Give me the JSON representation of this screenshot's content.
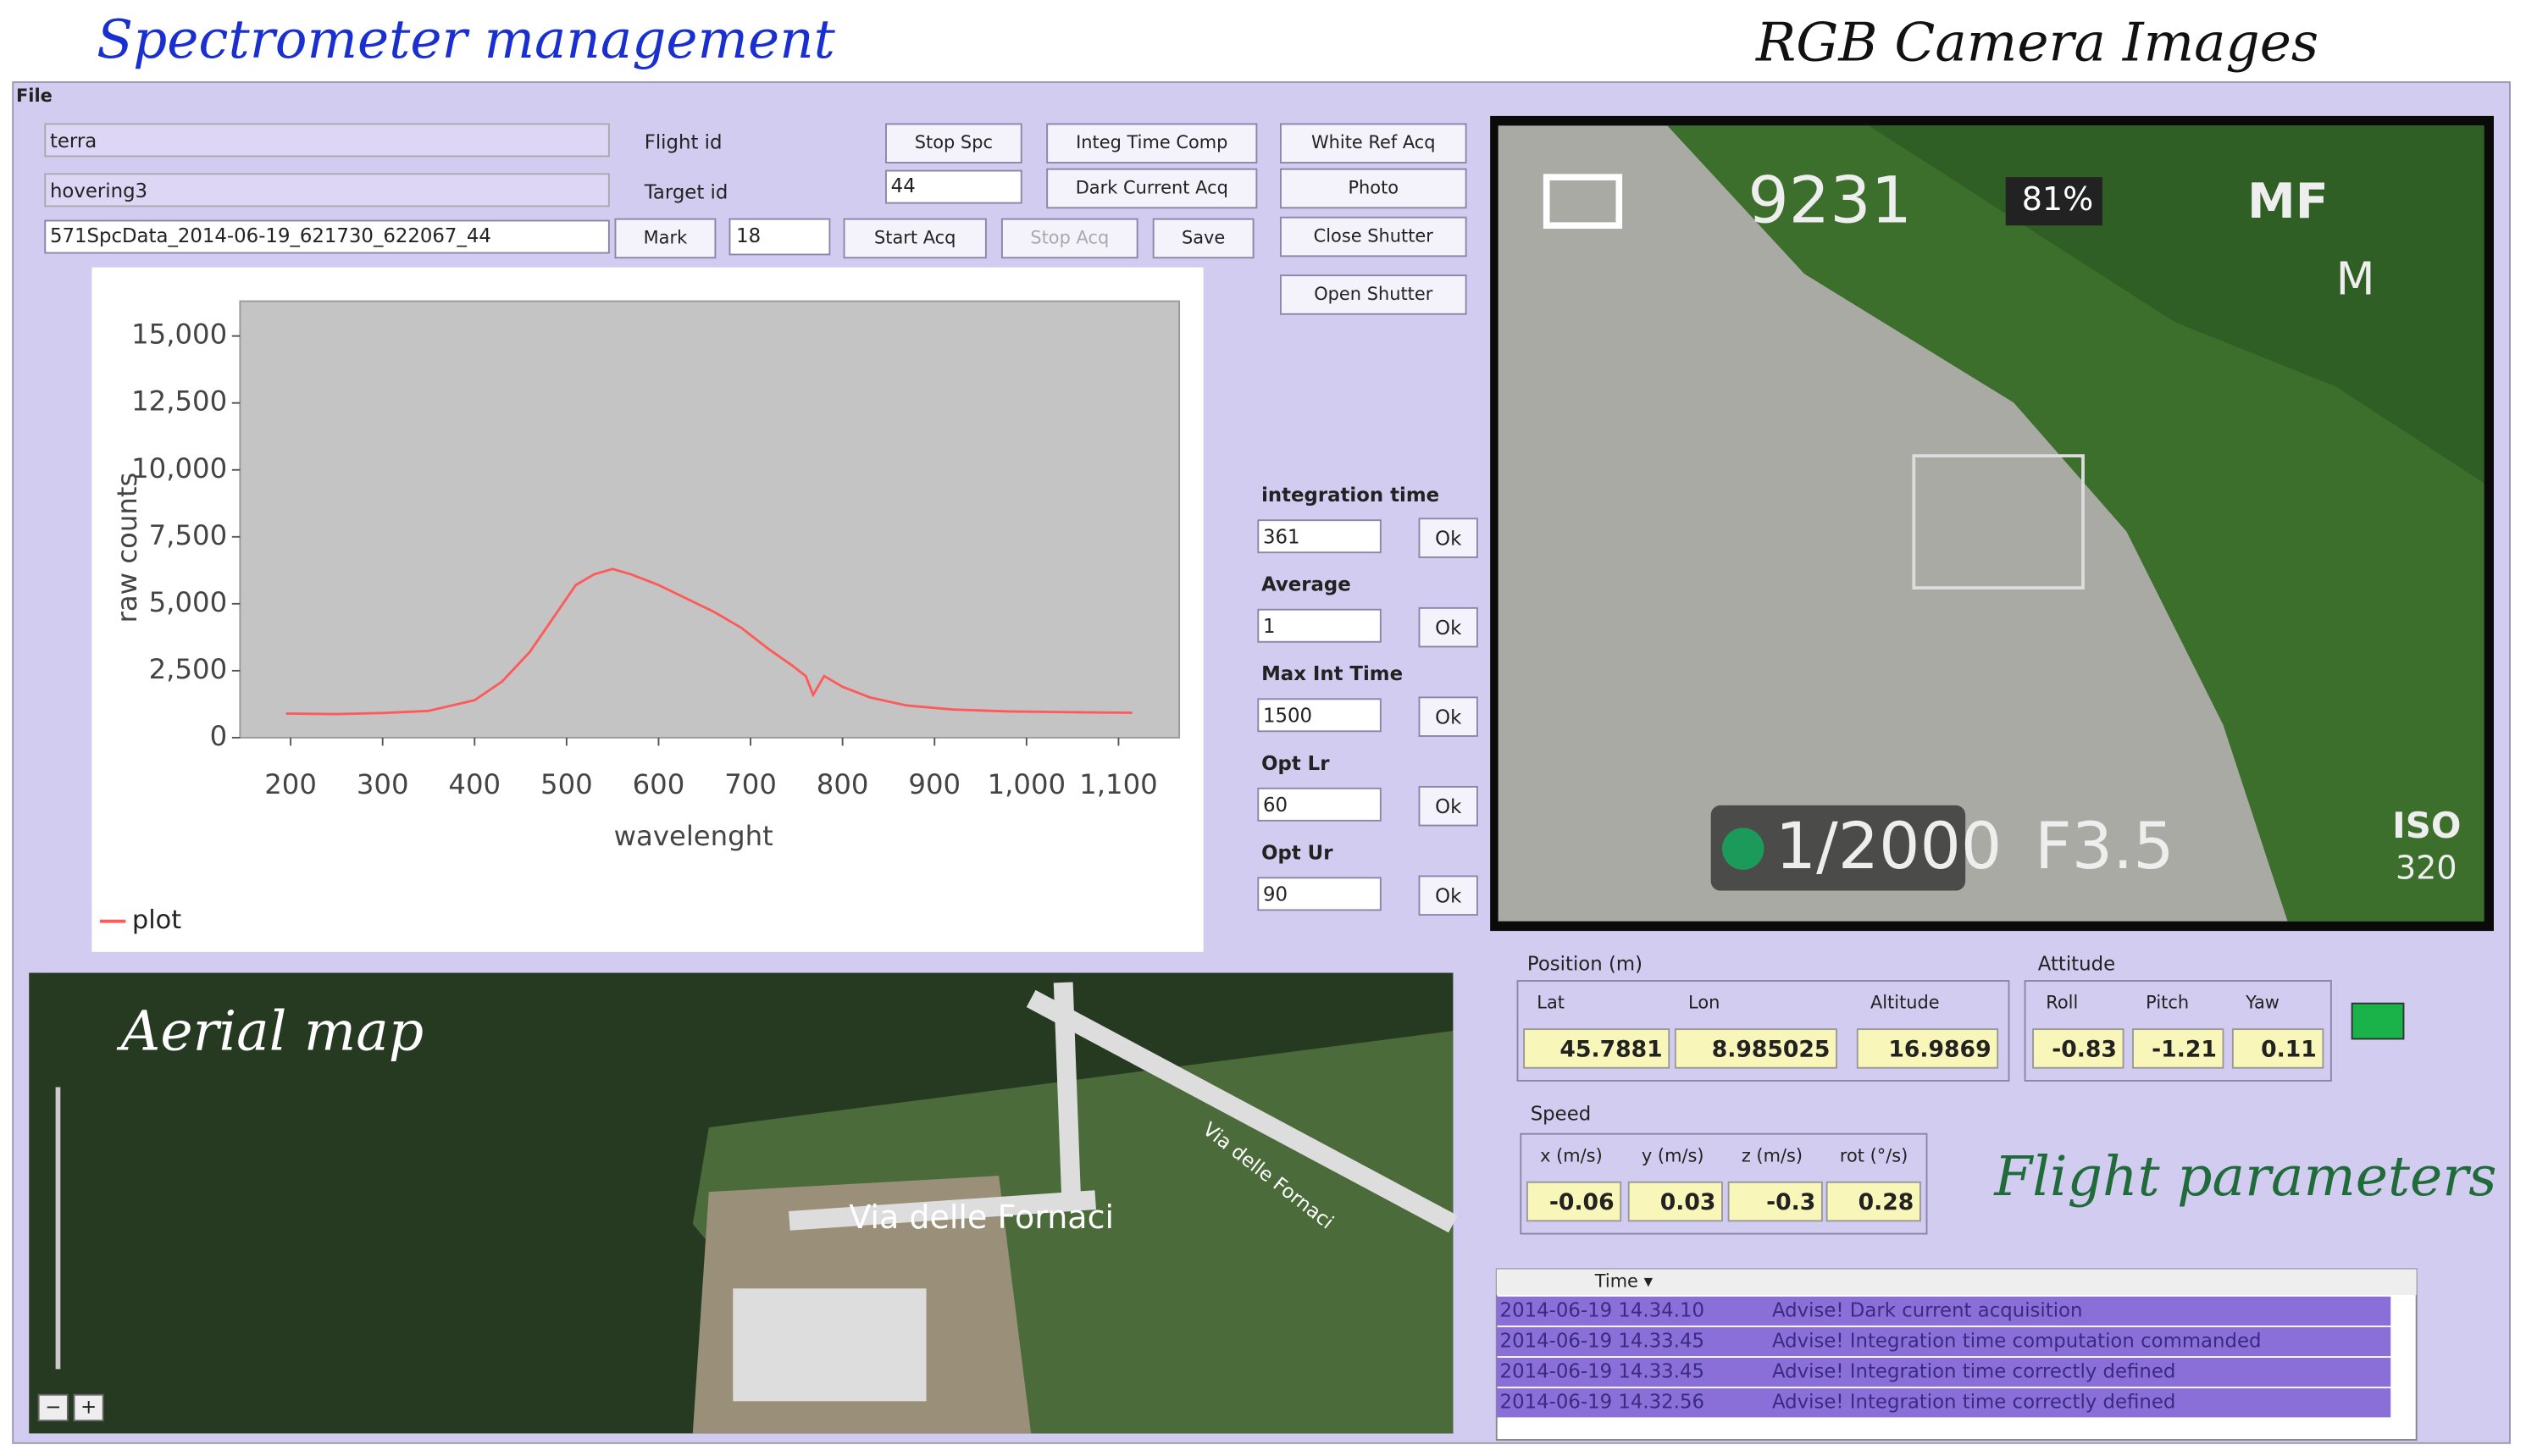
{
  "header": {
    "left_title": "Spectrometer management",
    "right_title": "RGB Camera Images"
  },
  "menu": {
    "file": "File"
  },
  "spectrometer": {
    "flight_field": "terra",
    "flight_label": "Flight id",
    "target_field": "hovering3",
    "target_label": "Target id",
    "file_field": "571SpcData_2014-06-19_621730_622067_44",
    "target_value": "44",
    "mark_value": "18",
    "buttons": {
      "stop_spc": "Stop Spc",
      "integ_time_comp": "Integ Time Comp",
      "white_ref_acq": "White Ref Acq",
      "dark_current_acq": "Dark Current Acq",
      "photo": "Photo",
      "mark": "Mark",
      "start_acq": "Start Acq",
      "stop_acq": "Stop Acq",
      "save": "Save",
      "close_shutter": "Close Shutter",
      "open_shutter": "Open Shutter"
    },
    "settings": [
      {
        "label": "integration time",
        "value": "361",
        "button": "Ok"
      },
      {
        "label": "Average",
        "value": "1",
        "button": "Ok"
      },
      {
        "label": "Max Int Time",
        "value": "1500",
        "button": "Ok"
      },
      {
        "label": "Opt Lr",
        "value": "60",
        "button": "Ok"
      },
      {
        "label": "Opt Ur",
        "value": "90",
        "button": "Ok"
      }
    ]
  },
  "chart_data": {
    "type": "line",
    "x_label": "wavelenght",
    "y_label": "raw counts",
    "x": [
      195,
      250,
      300,
      350,
      400,
      430,
      460,
      490,
      510,
      530,
      550,
      570,
      600,
      630,
      660,
      690,
      720,
      745,
      760,
      768,
      780,
      800,
      830,
      870,
      920,
      980,
      1050,
      1115
    ],
    "series": [
      {
        "name": "plot",
        "color": "#ff5a5a",
        "values": [
          900,
          880,
          920,
          1000,
          1400,
          2100,
          3200,
          4700,
          5700,
          6100,
          6300,
          6100,
          5700,
          5200,
          4700,
          4100,
          3300,
          2700,
          2300,
          1600,
          2300,
          1900,
          1500,
          1200,
          1050,
          980,
          950,
          930
        ]
      }
    ],
    "xlim": [
      145,
      1166
    ],
    "ylim": [
      0,
      16300
    ],
    "xticks": [
      200,
      300,
      400,
      500,
      600,
      700,
      800,
      900,
      {
        "value": 1000,
        "label": "1,000"
      },
      {
        "value": 1100,
        "label": "1,100"
      }
    ],
    "yticks": [
      0,
      {
        "value": 2500,
        "label": "2,500"
      },
      {
        "value": 5000,
        "label": "5,000"
      },
      {
        "value": 7500,
        "label": "7,500"
      },
      {
        "value": 10000,
        "label": "10,000"
      },
      {
        "value": 12500,
        "label": "12,500"
      },
      {
        "value": 15000,
        "label": "15,000"
      }
    ],
    "background": "#c4c4c4"
  },
  "camera": {
    "shots": "9231",
    "battery": "81%",
    "focus": "MF",
    "mode": "M",
    "shutter": "1/2000",
    "aperture": "F3.5",
    "iso_label": "ISO",
    "iso": "320"
  },
  "map": {
    "caption": "Aerial map",
    "road_1": "Via delle Fornaci",
    "road_2": "Via delle Fornaci",
    "zoom_out": "−",
    "zoom_in": "+"
  },
  "flight": {
    "caption": "Flight parameters",
    "position": {
      "title": "Position (m)",
      "labels": [
        "Lat",
        "Lon",
        "Altitude"
      ],
      "values": [
        "45.7881",
        "8.985025",
        "16.9869"
      ]
    },
    "attitude": {
      "title": "Attitude",
      "labels": [
        "Roll",
        "Pitch",
        "Yaw"
      ],
      "values": [
        "-0.83",
        "-1.21",
        "0.11"
      ]
    },
    "speed": {
      "title": "Speed",
      "labels": [
        "x (m/s)",
        "y (m/s)",
        "z (m/s)",
        "rot (°/s)"
      ],
      "values": [
        "-0.06",
        "0.03",
        "-0.3",
        "0.28"
      ]
    }
  },
  "log": {
    "column": "Time ▾",
    "rows": [
      [
        "2014-06-19 14.34.10",
        "Advise! Dark current acquisition"
      ],
      [
        "2014-06-19 14.33.45",
        "Advise! Integration time computation commanded"
      ],
      [
        "2014-06-19 14.33.45",
        "Advise! Integration time correctly defined"
      ],
      [
        "2014-06-19 14.32.56",
        "Advise! Integration time correctly defined"
      ]
    ]
  }
}
